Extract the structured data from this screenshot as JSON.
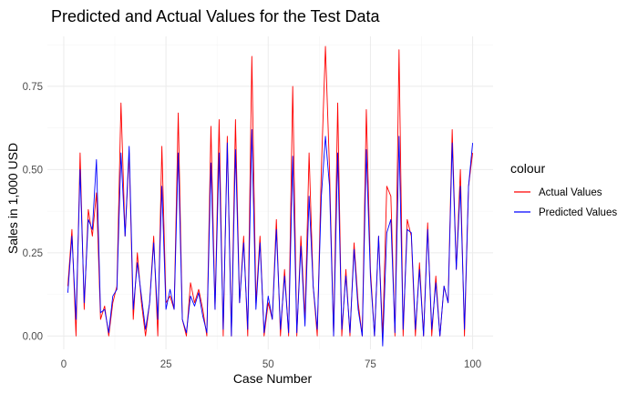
{
  "chart_data": {
    "type": "line",
    "title": "Predicted and Actual Values for the Test Data",
    "xlabel": "Case Number",
    "ylabel": "Sales in 1,000 USD",
    "xlim": [
      -4,
      105
    ],
    "ylim": [
      -0.04,
      0.9
    ],
    "xticks": [
      0,
      25,
      50,
      75,
      100
    ],
    "yticks": [
      0.0,
      0.25,
      0.5,
      0.75
    ],
    "ytick_labels": [
      "0.00",
      "0.25",
      "0.50",
      "0.75"
    ],
    "grid": true,
    "legend_title": "colour",
    "legend_position": "right",
    "x": [
      1,
      2,
      3,
      4,
      5,
      6,
      7,
      8,
      9,
      10,
      11,
      12,
      13,
      14,
      15,
      16,
      17,
      18,
      19,
      20,
      21,
      22,
      23,
      24,
      25,
      26,
      27,
      28,
      29,
      30,
      31,
      32,
      33,
      34,
      35,
      36,
      37,
      38,
      39,
      40,
      41,
      42,
      43,
      44,
      45,
      46,
      47,
      48,
      49,
      50,
      51,
      52,
      53,
      54,
      55,
      56,
      57,
      58,
      59,
      60,
      61,
      62,
      63,
      64,
      65,
      66,
      67,
      68,
      69,
      70,
      71,
      72,
      73,
      74,
      75,
      76,
      77,
      78,
      79,
      80,
      81,
      82,
      83,
      84,
      85,
      86,
      87,
      88,
      89,
      90,
      91,
      92,
      93,
      94,
      95,
      96,
      97,
      98,
      99,
      100
    ],
    "series": [
      {
        "name": "Actual Values",
        "color": "#ff0000",
        "values": [
          0.15,
          0.32,
          0.0,
          0.55,
          0.08,
          0.38,
          0.3,
          0.43,
          0.05,
          0.09,
          0.0,
          0.1,
          0.15,
          0.7,
          0.3,
          0.55,
          0.05,
          0.25,
          0.1,
          0.0,
          0.1,
          0.3,
          0.0,
          0.57,
          0.1,
          0.12,
          0.08,
          0.67,
          0.05,
          0.0,
          0.16,
          0.1,
          0.14,
          0.08,
          0.0,
          0.63,
          0.08,
          0.65,
          0.0,
          0.6,
          0.0,
          0.65,
          0.1,
          0.3,
          0.0,
          0.84,
          0.1,
          0.3,
          0.0,
          0.1,
          0.05,
          0.35,
          0.0,
          0.2,
          0.0,
          0.75,
          0.0,
          0.3,
          0.05,
          0.55,
          0.15,
          0.0,
          0.5,
          0.87,
          0.5,
          0.0,
          0.7,
          0.0,
          0.2,
          0.0,
          0.28,
          0.1,
          0.0,
          0.68,
          0.2,
          0.0,
          0.3,
          0.0,
          0.45,
          0.42,
          0.0,
          0.86,
          0.0,
          0.35,
          0.3,
          0.0,
          0.22,
          0.0,
          0.34,
          0.0,
          0.18,
          0.0,
          0.15,
          0.1,
          0.62,
          0.2,
          0.5,
          0.0,
          0.45,
          0.55
        ]
      },
      {
        "name": "Predicted Values",
        "color": "#0000ff",
        "values": [
          0.13,
          0.3,
          0.05,
          0.5,
          0.1,
          0.35,
          0.32,
          0.53,
          0.07,
          0.08,
          0.01,
          0.12,
          0.14,
          0.55,
          0.3,
          0.57,
          0.08,
          0.22,
          0.12,
          0.02,
          0.1,
          0.28,
          0.05,
          0.45,
          0.08,
          0.14,
          0.08,
          0.55,
          0.05,
          0.01,
          0.12,
          0.09,
          0.13,
          0.06,
          0.01,
          0.52,
          0.08,
          0.55,
          0.02,
          0.58,
          0.0,
          0.56,
          0.1,
          0.28,
          0.02,
          0.62,
          0.08,
          0.28,
          0.01,
          0.12,
          0.05,
          0.32,
          0.02,
          0.18,
          0.01,
          0.54,
          0.01,
          0.27,
          0.03,
          0.42,
          0.15,
          0.02,
          0.42,
          0.6,
          0.45,
          0.0,
          0.55,
          0.02,
          0.18,
          0.01,
          0.26,
          0.08,
          0.0,
          0.56,
          0.18,
          0.0,
          0.3,
          -0.03,
          0.31,
          0.35,
          0.01,
          0.6,
          0.02,
          0.32,
          0.31,
          0.02,
          0.2,
          0.0,
          0.32,
          0.02,
          0.16,
          0.0,
          0.15,
          0.1,
          0.58,
          0.2,
          0.45,
          0.02,
          0.45,
          0.58
        ]
      }
    ]
  }
}
